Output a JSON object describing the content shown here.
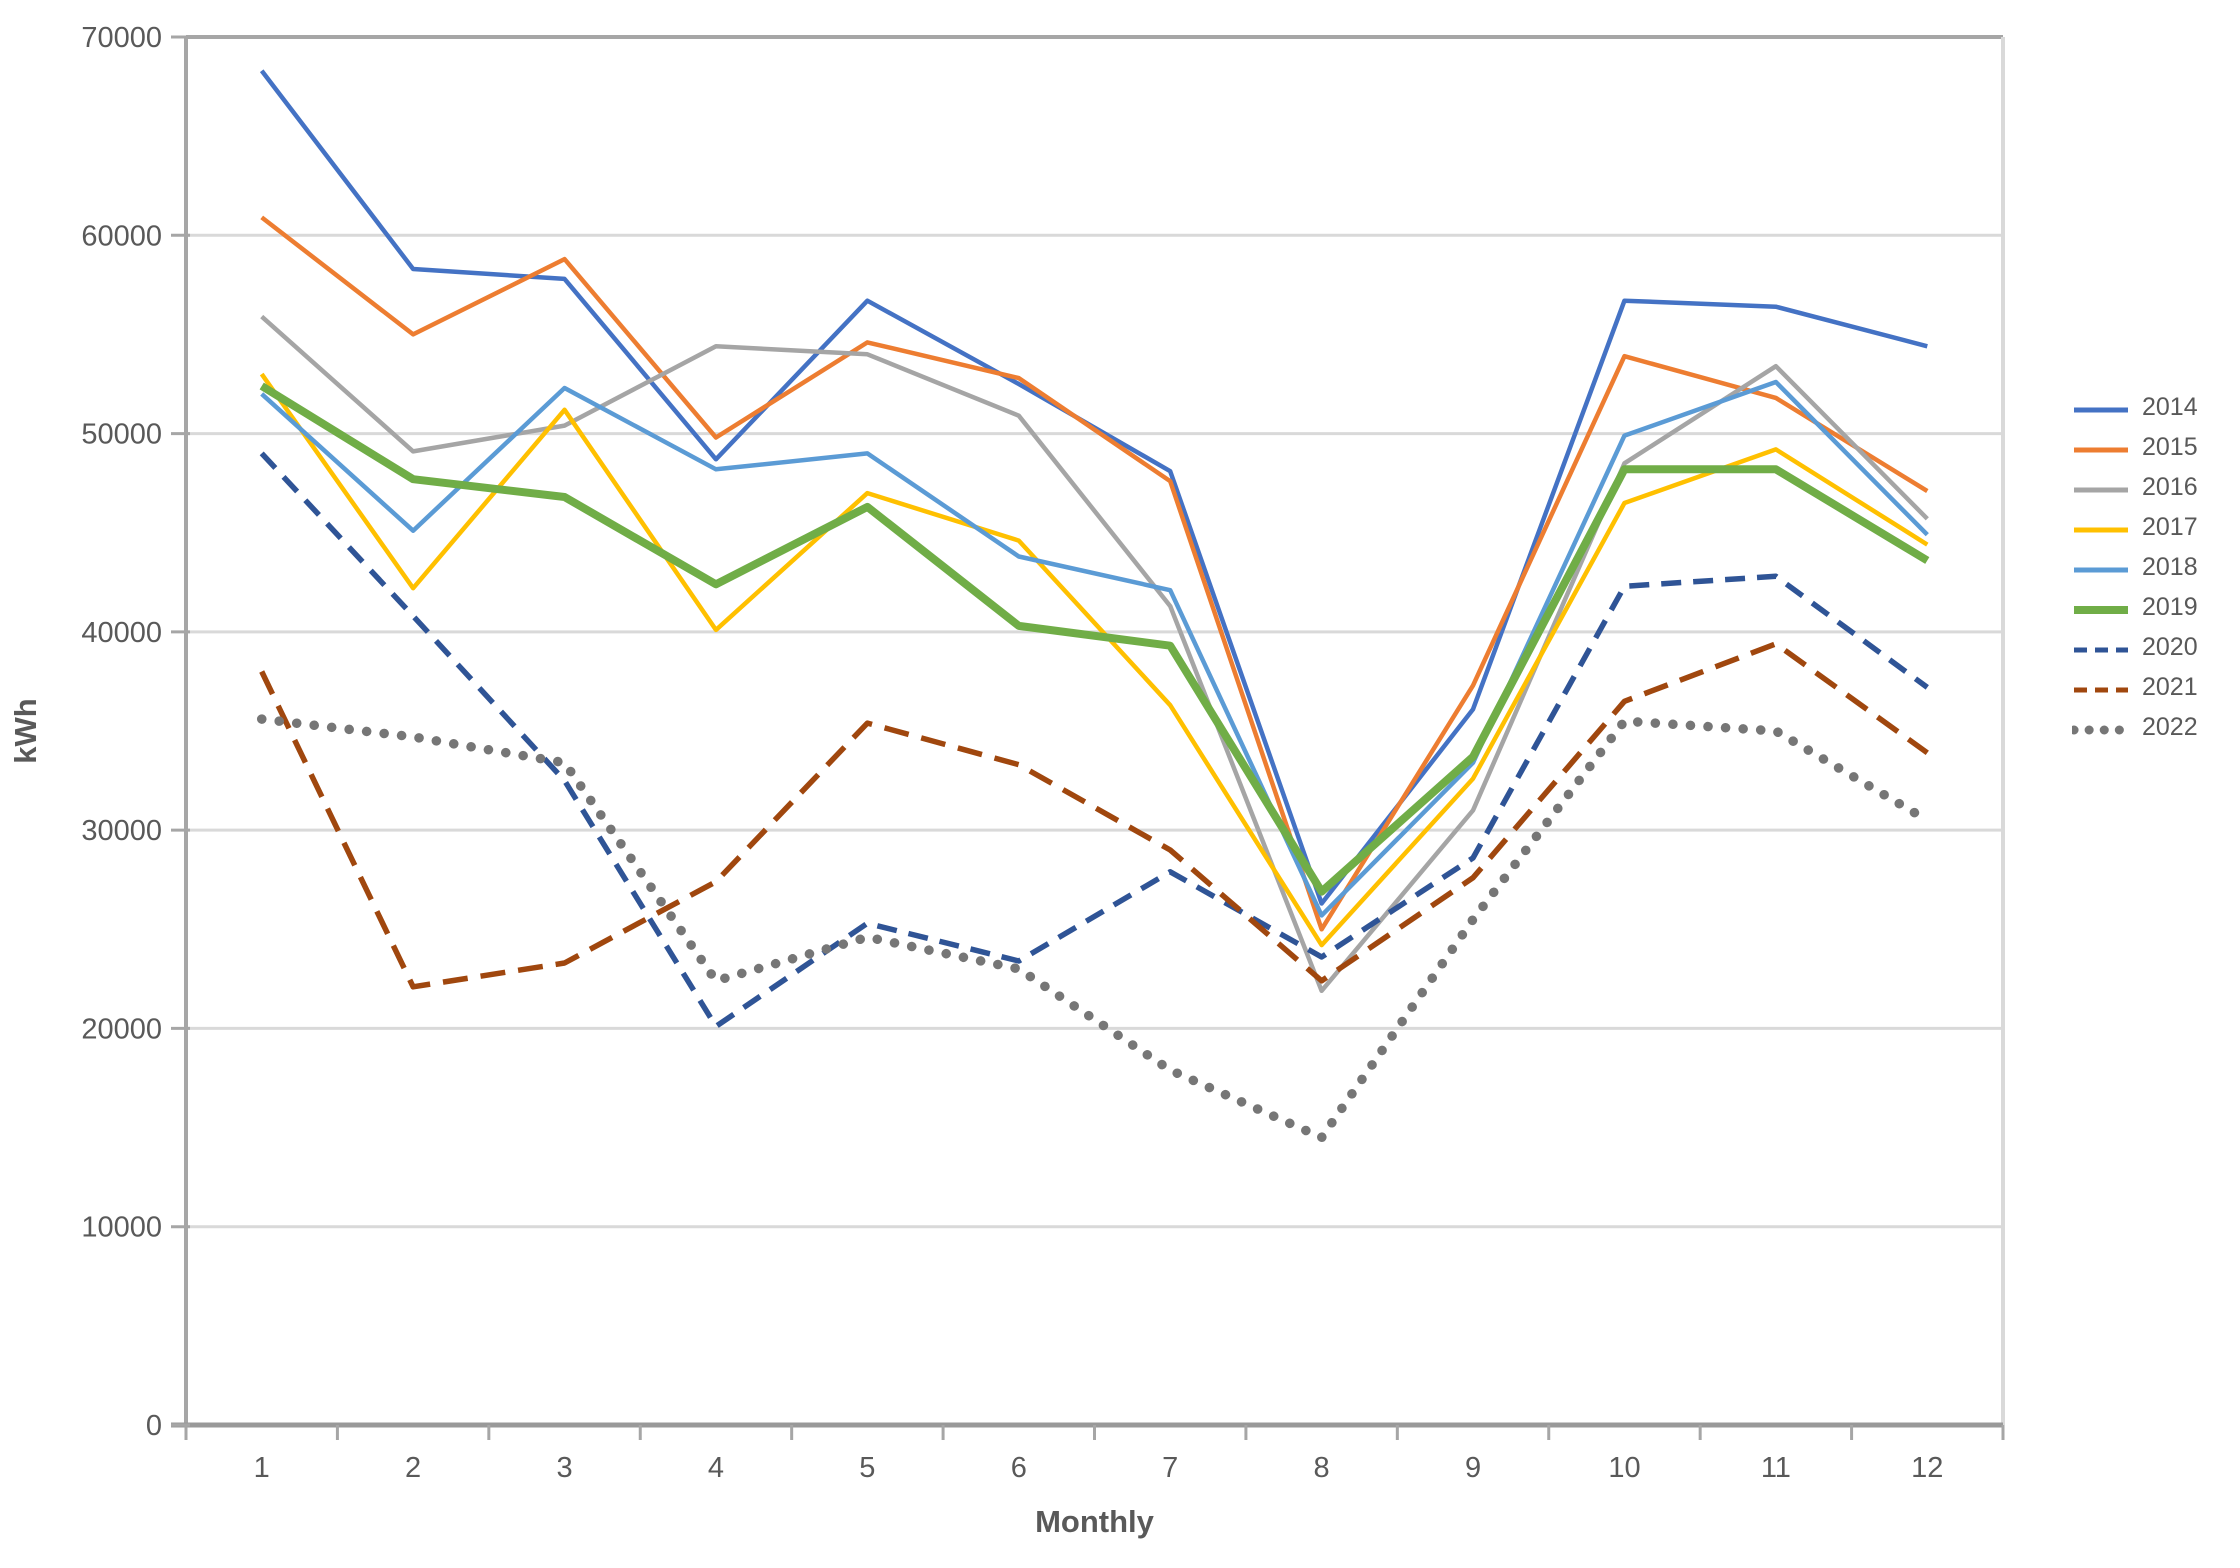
{
  "chart_data": {
    "type": "line",
    "title": "",
    "xlabel": "Monthly",
    "ylabel": "kWh",
    "x": [
      1,
      2,
      3,
      4,
      5,
      6,
      7,
      8,
      9,
      10,
      11,
      12
    ],
    "ylim": [
      0,
      70000
    ],
    "y_tick_step": 10000,
    "y_ticks": [
      0,
      10000,
      20000,
      30000,
      40000,
      50000,
      60000,
      70000
    ],
    "grid": true,
    "legend_position": "right",
    "series": [
      {
        "name": "2014",
        "color": "#4472C4",
        "style": "solid",
        "width": 4.5,
        "values": [
          68300,
          58300,
          57800,
          48700,
          56700,
          52500,
          48100,
          26300,
          36100,
          56700,
          56400,
          54400
        ]
      },
      {
        "name": "2015",
        "color": "#ED7D31",
        "style": "solid",
        "width": 4.5,
        "values": [
          60900,
          55000,
          58800,
          49800,
          54600,
          52800,
          47600,
          25000,
          37300,
          53900,
          51800,
          47100
        ]
      },
      {
        "name": "2016",
        "color": "#A5A5A5",
        "style": "solid",
        "width": 4.5,
        "values": [
          55900,
          49100,
          50400,
          54400,
          54000,
          50900,
          41300,
          21900,
          31000,
          48500,
          53400,
          45700
        ]
      },
      {
        "name": "2017",
        "color": "#FFC000",
        "style": "solid",
        "width": 4.5,
        "values": [
          53000,
          42200,
          51200,
          40100,
          47000,
          44600,
          36300,
          24200,
          32600,
          46500,
          49200,
          44400
        ]
      },
      {
        "name": "2018",
        "color": "#5B9BD5",
        "style": "solid",
        "width": 4.5,
        "values": [
          52000,
          45100,
          52300,
          48200,
          49000,
          43800,
          42100,
          25700,
          33400,
          49900,
          52600,
          44900
        ]
      },
      {
        "name": "2019",
        "color": "#70AD47",
        "style": "solid",
        "width": 8,
        "values": [
          52400,
          47700,
          46800,
          42400,
          46300,
          40300,
          39300,
          26900,
          33700,
          48200,
          48200,
          43600
        ]
      },
      {
        "name": "2020",
        "color": "#2F5496",
        "style": "dashed",
        "width": 5.5,
        "values": [
          49000,
          40800,
          32500,
          20100,
          25300,
          23400,
          27900,
          23600,
          28600,
          42300,
          42800,
          37200
        ]
      },
      {
        "name": "2021",
        "color": "#A0470E",
        "style": "dashed",
        "width": 5.5,
        "values": [
          38000,
          22100,
          23300,
          27400,
          35400,
          33300,
          29000,
          22400,
          27600,
          36500,
          39400,
          33900
        ]
      },
      {
        "name": "2022",
        "color": "#767676",
        "style": "dotted",
        "width": 9.5,
        "values": [
          35600,
          34700,
          33400,
          22400,
          24600,
          23000,
          17900,
          14500,
          25500,
          35500,
          35000,
          30500
        ]
      }
    ],
    "colors": {
      "gridline": "#D9D9D9",
      "top_gridline": "#A6A6A6",
      "axis_line": "#A6A6A6",
      "bottom_axis": "#999999",
      "tick_label": "#595959",
      "axis_title": "#595959",
      "background": "#FFFFFF"
    }
  }
}
